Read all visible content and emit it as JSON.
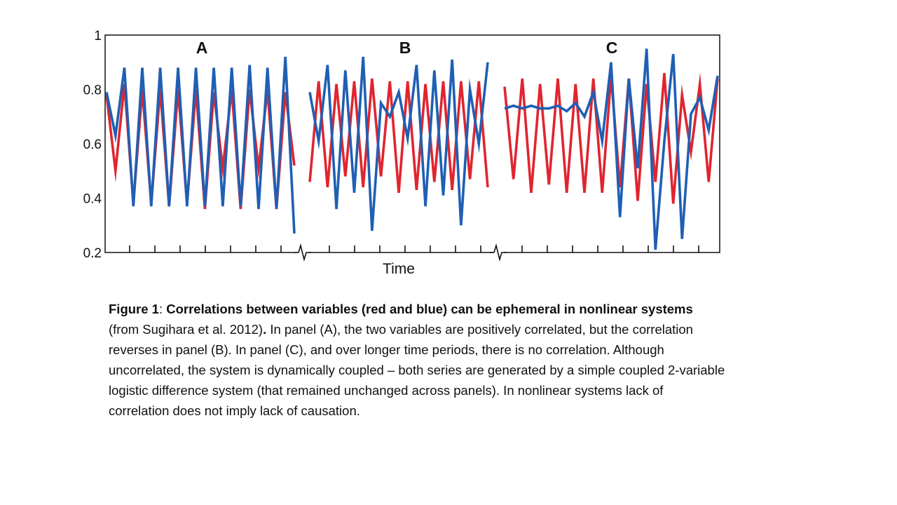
{
  "chart_data": {
    "type": "line",
    "xlabel": "Time",
    "ylabel": "",
    "ylim": [
      0.2,
      1.0
    ],
    "yticks": [
      "0.2",
      "0.4",
      "0.6",
      "0.8",
      "1"
    ],
    "grid": false,
    "legend": "none",
    "axis_breaks": 2,
    "series_colors": {
      "red": "#e0252f",
      "blue": "#1f5fb4"
    },
    "panels": [
      {
        "label": "A",
        "red": [
          0.78,
          0.5,
          0.82,
          0.38,
          0.8,
          0.38,
          0.8,
          0.37,
          0.8,
          0.38,
          0.8,
          0.36,
          0.79,
          0.51,
          0.8,
          0.36,
          0.8,
          0.51,
          0.8,
          0.36,
          0.79,
          0.52
        ],
        "blue": [
          0.79,
          0.63,
          0.88,
          0.37,
          0.88,
          0.37,
          0.88,
          0.37,
          0.88,
          0.37,
          0.88,
          0.37,
          0.88,
          0.37,
          0.88,
          0.37,
          0.89,
          0.36,
          0.88,
          0.36,
          0.92,
          0.27
        ]
      },
      {
        "label": "B",
        "red": [
          0.46,
          0.83,
          0.44,
          0.82,
          0.48,
          0.83,
          0.44,
          0.84,
          0.48,
          0.83,
          0.42,
          0.83,
          0.43,
          0.82,
          0.46,
          0.83,
          0.43,
          0.83,
          0.47,
          0.83,
          0.44
        ],
        "blue": [
          0.79,
          0.61,
          0.89,
          0.36,
          0.87,
          0.42,
          0.92,
          0.28,
          0.75,
          0.7,
          0.79,
          0.62,
          0.89,
          0.37,
          0.87,
          0.41,
          0.91,
          0.3,
          0.8,
          0.6,
          0.9
        ]
      },
      {
        "label": "C",
        "red": [
          0.81,
          0.47,
          0.84,
          0.42,
          0.82,
          0.45,
          0.84,
          0.42,
          0.82,
          0.42,
          0.84,
          0.42,
          0.85,
          0.44,
          0.84,
          0.39,
          0.82,
          0.46,
          0.86,
          0.38,
          0.78,
          0.57,
          0.82,
          0.46,
          0.84
        ],
        "blue": [
          0.73,
          0.74,
          0.73,
          0.74,
          0.73,
          0.73,
          0.74,
          0.72,
          0.75,
          0.7,
          0.79,
          0.61,
          0.9,
          0.33,
          0.84,
          0.51,
          0.95,
          0.21,
          0.61,
          0.93,
          0.25,
          0.71,
          0.77,
          0.65,
          0.85
        ]
      }
    ]
  },
  "caption": {
    "part1_bold": "Figure 1",
    "part2": ": ",
    "part3_bold": "Correlations between variables (red and blue) can be ephemeral in nonlinear systems",
    "part4": " (from Sugihara et al. 2012)",
    "part5_bold": ".",
    "part6": " In panel (A), the two variables are positively correlated, but the correlation reverses in panel (B). In panel (C), and over longer time periods, there is no correlation. Although uncorrelated, the system is dynamically coupled – both series are generated by a simple coupled 2-variable logistic difference system (that remained unchanged across panels). In nonlinear systems lack of correlation does not imply lack of causation."
  }
}
